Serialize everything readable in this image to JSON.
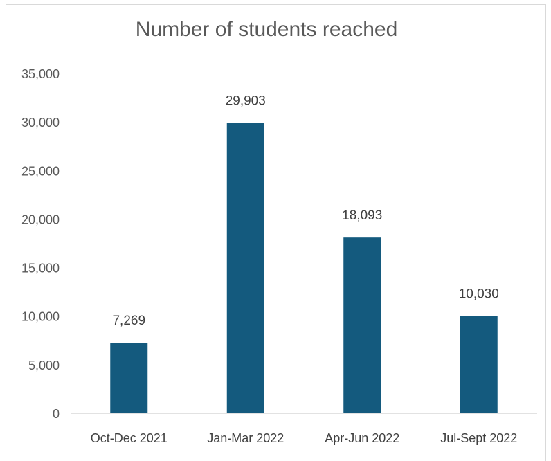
{
  "chart_data": {
    "type": "bar",
    "title": "Number of students reached",
    "xlabel": "",
    "ylabel": "",
    "categories": [
      "Oct-Dec 2021",
      "Jan-Mar 2022",
      "Apr-Jun 2022",
      "Jul-Sept 2022"
    ],
    "values": [
      7269,
      29903,
      18093,
      10030
    ],
    "data_labels": [
      "7,269",
      "29,903",
      "18,093",
      "10,030"
    ],
    "ylim": [
      0,
      35000
    ],
    "yticks": [
      0,
      5000,
      10000,
      15000,
      20000,
      25000,
      30000,
      35000
    ],
    "ytick_labels": [
      "0",
      "5,000",
      "10,000",
      "15,000",
      "20,000",
      "25,000",
      "30,000",
      "35,000"
    ],
    "grid": false,
    "legend": "none",
    "bar_color": "#145A7E"
  }
}
